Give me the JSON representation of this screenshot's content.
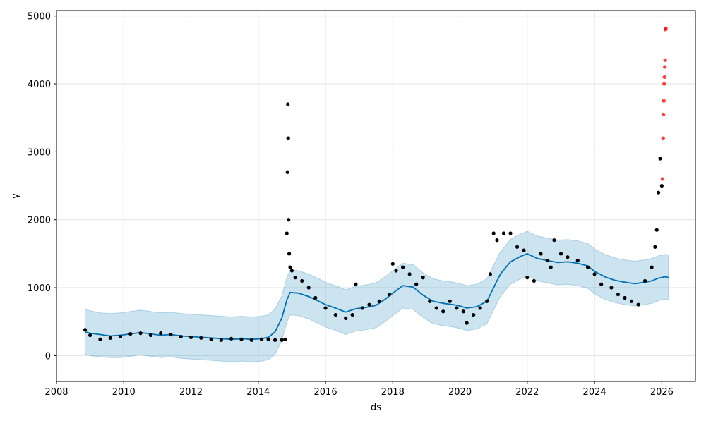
{
  "chart_data": {
    "type": "line",
    "xlabel": "ds",
    "ylabel": "y",
    "xlim": [
      2008.0,
      2027.0
    ],
    "ylim": [
      -380,
      5080
    ],
    "xticks": [
      2008,
      2010,
      2012,
      2014,
      2016,
      2018,
      2020,
      2022,
      2024,
      2026
    ],
    "yticks": [
      0,
      1000,
      2000,
      3000,
      4000,
      5000
    ],
    "grid": true,
    "colors": {
      "forecast": "#0072B2",
      "band": "#0072B2",
      "observed": "#000000",
      "outlier": "#ff0000"
    },
    "series": [
      {
        "kind": "forecast",
        "x": [
          2008.85,
          2009.0,
          2009.3,
          2009.6,
          2009.9,
          2010.2,
          2010.5,
          2010.8,
          2011.1,
          2011.4,
          2011.7,
          2012.0,
          2012.3,
          2012.6,
          2012.9,
          2013.2,
          2013.5,
          2013.8,
          2014.1,
          2014.3,
          2014.5,
          2014.7,
          2014.85,
          2014.95,
          2015.2,
          2015.5,
          2015.8,
          2016.0,
          2016.3,
          2016.6,
          2016.9,
          2017.2,
          2017.5,
          2017.8,
          2018.0,
          2018.3,
          2018.6,
          2018.9,
          2019.2,
          2019.5,
          2019.8,
          2020.0,
          2020.2,
          2020.5,
          2020.8,
          2020.95,
          2021.2,
          2021.5,
          2021.8,
          2022.0,
          2022.3,
          2022.6,
          2022.9,
          2023.2,
          2023.5,
          2023.8,
          2024.0,
          2024.3,
          2024.6,
          2024.9,
          2025.2,
          2025.5,
          2025.7,
          2025.9,
          2026.1,
          2026.2
        ],
        "y": [
          350,
          330,
          310,
          290,
          300,
          320,
          340,
          320,
          300,
          310,
          290,
          280,
          270,
          260,
          250,
          240,
          250,
          240,
          250,
          270,
          350,
          550,
          820,
          930,
          920,
          870,
          800,
          750,
          700,
          640,
          690,
          710,
          740,
          840,
          920,
          1030,
          1010,
          890,
          800,
          770,
          750,
          730,
          700,
          720,
          800,
          950,
          1200,
          1380,
          1460,
          1500,
          1430,
          1400,
          1370,
          1380,
          1360,
          1320,
          1240,
          1160,
          1110,
          1080,
          1060,
          1080,
          1100,
          1140,
          1160,
          1150
        ]
      },
      {
        "kind": "uncertainty_band",
        "x": [
          2008.85,
          2009.0,
          2009.3,
          2009.6,
          2009.9,
          2010.2,
          2010.5,
          2010.8,
          2011.1,
          2011.4,
          2011.7,
          2012.0,
          2012.3,
          2012.6,
          2012.9,
          2013.2,
          2013.5,
          2013.8,
          2014.1,
          2014.3,
          2014.5,
          2014.7,
          2014.85,
          2014.95,
          2015.2,
          2015.5,
          2015.8,
          2016.0,
          2016.3,
          2016.6,
          2016.9,
          2017.2,
          2017.5,
          2017.8,
          2018.0,
          2018.3,
          2018.6,
          2018.9,
          2019.2,
          2019.5,
          2019.8,
          2020.0,
          2020.2,
          2020.5,
          2020.8,
          2020.95,
          2021.2,
          2021.5,
          2021.8,
          2022.0,
          2022.3,
          2022.6,
          2022.9,
          2023.2,
          2023.5,
          2023.8,
          2024.0,
          2024.3,
          2024.6,
          2024.9,
          2025.2,
          2025.5,
          2025.7,
          2025.9,
          2026.1,
          2026.2
        ],
        "upper": [
          680,
          660,
          630,
          620,
          630,
          650,
          670,
          650,
          630,
          640,
          620,
          610,
          600,
          590,
          580,
          570,
          580,
          570,
          580,
          600,
          690,
          880,
          1150,
          1260,
          1250,
          1200,
          1130,
          1080,
          1030,
          970,
          1020,
          1040,
          1070,
          1170,
          1250,
          1360,
          1340,
          1220,
          1130,
          1100,
          1080,
          1060,
          1030,
          1050,
          1130,
          1280,
          1530,
          1710,
          1790,
          1830,
          1760,
          1730,
          1700,
          1710,
          1690,
          1650,
          1570,
          1490,
          1440,
          1410,
          1390,
          1410,
          1430,
          1470,
          1490,
          1480
        ],
        "lower": [
          20,
          0,
          -20,
          -30,
          -30,
          -10,
          10,
          -10,
          -30,
          -20,
          -40,
          -50,
          -60,
          -70,
          -80,
          -90,
          -80,
          -90,
          -80,
          -60,
          20,
          220,
          490,
          600,
          590,
          540,
          470,
          420,
          370,
          310,
          360,
          380,
          410,
          510,
          590,
          700,
          680,
          560,
          470,
          440,
          420,
          400,
          370,
          390,
          470,
          620,
          870,
          1050,
          1130,
          1170,
          1100,
          1070,
          1040,
          1050,
          1030,
          990,
          910,
          830,
          780,
          750,
          730,
          750,
          770,
          810,
          830,
          820
        ]
      },
      {
        "kind": "observed_points",
        "x": [
          2008.85,
          2009.0,
          2009.3,
          2009.6,
          2009.9,
          2010.2,
          2010.5,
          2010.8,
          2011.1,
          2011.4,
          2011.7,
          2012.0,
          2012.3,
          2012.6,
          2012.9,
          2013.2,
          2013.5,
          2013.8,
          2014.1,
          2014.3,
          2014.5,
          2014.7,
          2014.8,
          2014.85,
          2014.87,
          2014.88,
          2014.89,
          2014.9,
          2014.92,
          2014.95,
          2015.0,
          2015.1,
          2015.3,
          2015.5,
          2015.7,
          2016.0,
          2016.3,
          2016.6,
          2016.8,
          2016.9,
          2017.1,
          2017.3,
          2017.6,
          2017.9,
          2018.0,
          2018.1,
          2018.3,
          2018.5,
          2018.7,
          2018.9,
          2019.1,
          2019.3,
          2019.5,
          2019.7,
          2019.9,
          2020.1,
          2020.2,
          2020.4,
          2020.6,
          2020.8,
          2020.9,
          2021.0,
          2021.1,
          2021.3,
          2021.5,
          2021.7,
          2021.9,
          2022.0,
          2022.2,
          2022.4,
          2022.6,
          2022.7,
          2022.8,
          2023.0,
          2023.2,
          2023.5,
          2023.8,
          2024.0,
          2024.2,
          2024.5,
          2024.7,
          2024.9,
          2025.1,
          2025.3,
          2025.5,
          2025.7,
          2025.8,
          2025.85,
          2025.9,
          2025.95,
          2026.0
        ],
        "y": [
          380,
          300,
          240,
          260,
          280,
          320,
          330,
          300,
          330,
          310,
          280,
          270,
          260,
          240,
          230,
          250,
          240,
          230,
          240,
          240,
          230,
          230,
          240,
          1800,
          2700,
          3700,
          3200,
          2000,
          1500,
          1300,
          1250,
          1150,
          1100,
          1000,
          850,
          700,
          600,
          550,
          600,
          1050,
          700,
          750,
          800,
          900,
          1350,
          1250,
          1300,
          1200,
          1050,
          1150,
          800,
          700,
          650,
          800,
          700,
          650,
          480,
          600,
          700,
          800,
          1200,
          1800,
          1700,
          1800,
          1800,
          1600,
          1550,
          1150,
          1100,
          1500,
          1400,
          1300,
          1700,
          1500,
          1450,
          1400,
          1300,
          1200,
          1050,
          1000,
          900,
          850,
          800,
          750,
          1100,
          1300,
          1600,
          1850,
          2400,
          2900,
          2500
        ]
      },
      {
        "kind": "outlier_points",
        "x": [
          2026.02,
          2026.04,
          2026.05,
          2026.06,
          2026.07,
          2026.08,
          2026.09,
          2026.1,
          2026.11,
          2026.12
        ],
        "y": [
          2600,
          3200,
          3550,
          3750,
          4000,
          4100,
          4250,
          4350,
          4800,
          4820
        ]
      }
    ]
  }
}
